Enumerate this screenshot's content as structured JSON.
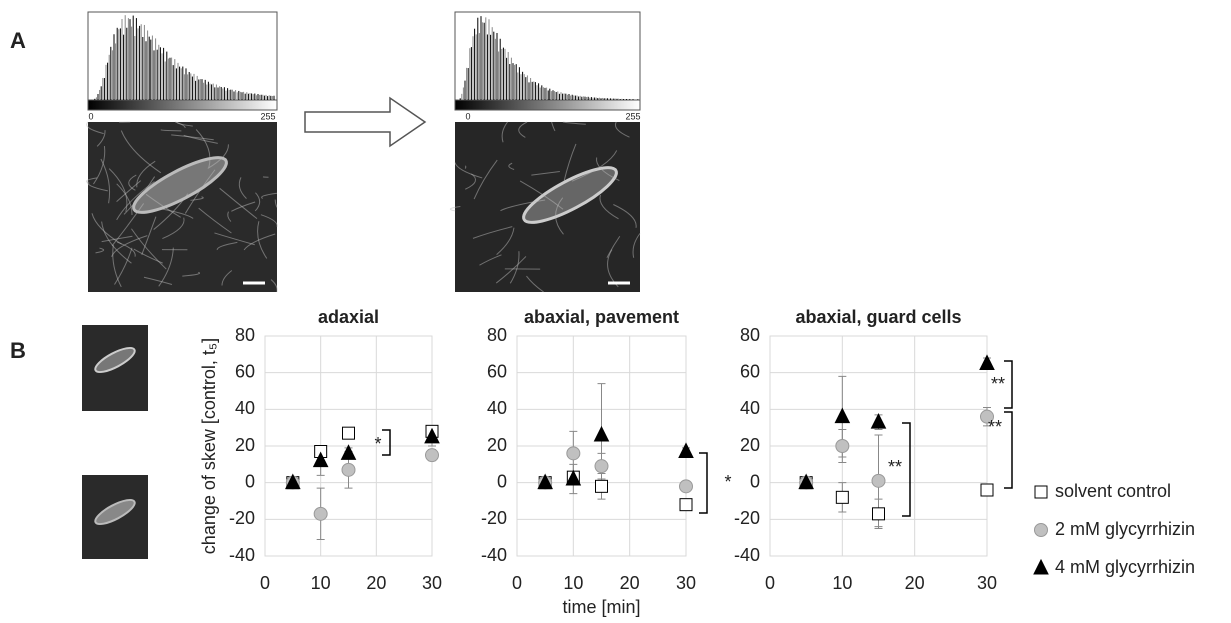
{
  "panel_a": {
    "label": "A",
    "histograms": [
      {
        "min_label": 0,
        "max_label": 255
      },
      {
        "min_label": 0,
        "max_label": 255
      }
    ]
  },
  "panel_b": {
    "label": "B"
  },
  "chart_data": [
    {
      "type": "scatter",
      "title": "adaxial",
      "y_label": "change of skew [control, t₅]",
      "xlim": [
        0,
        30
      ],
      "xticks": [
        0,
        10,
        20,
        30
      ],
      "ylim": [
        -40,
        80
      ],
      "yticks": [
        -40,
        -20,
        0,
        20,
        40,
        60,
        80
      ],
      "grid": true,
      "x": [
        5,
        10,
        15,
        30
      ],
      "series": [
        {
          "name": "solvent control",
          "marker": "square",
          "color": "#ffffff",
          "values": [
            0,
            17,
            27,
            28
          ],
          "errors": [
            1,
            3,
            2,
            3
          ]
        },
        {
          "name": "2 mM glycyrrhizin",
          "marker": "circle",
          "color": "#c0c0c0",
          "values": [
            0,
            -17,
            7,
            15
          ],
          "errors": [
            1,
            14,
            10,
            3
          ]
        },
        {
          "name": "4 mM glycyrrhizin",
          "marker": "triangle",
          "color": "#000000",
          "values": [
            0,
            12,
            16,
            25
          ],
          "errors": [
            1,
            8,
            3,
            5
          ]
        }
      ],
      "annotations": [
        "*"
      ]
    },
    {
      "type": "scatter",
      "title": "abaxial, pavement",
      "x_label": "time [min]",
      "xlim": [
        0,
        30
      ],
      "xticks": [
        0,
        10,
        20,
        30
      ],
      "ylim": [
        -40,
        80
      ],
      "yticks": [
        -40,
        -20,
        0,
        20,
        40,
        60,
        80
      ],
      "grid": true,
      "x": [
        5,
        10,
        15,
        30
      ],
      "series": [
        {
          "marker": "square",
          "color": "#ffffff",
          "values": [
            0,
            3,
            -2,
            -12
          ],
          "errors": [
            1,
            3,
            7,
            3
          ]
        },
        {
          "marker": "circle",
          "color": "#c0c0c0",
          "values": [
            0,
            16,
            9,
            -2
          ],
          "errors": [
            1,
            12,
            7,
            2
          ]
        },
        {
          "marker": "triangle",
          "color": "#000000",
          "values": [
            0,
            2,
            26,
            17
          ],
          "errors": [
            1,
            8,
            28,
            2
          ]
        }
      ],
      "annotations": [
        "*"
      ]
    },
    {
      "type": "scatter",
      "title": "abaxial, guard cells",
      "xlim": [
        0,
        30
      ],
      "xticks": [
        0,
        10,
        20,
        30
      ],
      "ylim": [
        -40,
        80
      ],
      "yticks": [
        -40,
        -20,
        0,
        20,
        40,
        60,
        80
      ],
      "grid": true,
      "x": [
        5,
        10,
        15,
        30
      ],
      "series": [
        {
          "marker": "square",
          "color": "#ffffff",
          "values": [
            0,
            -8,
            -17,
            -4
          ],
          "errors": [
            1,
            8,
            8,
            2
          ]
        },
        {
          "marker": "circle",
          "color": "#c0c0c0",
          "values": [
            0,
            20,
            1,
            36
          ],
          "errors": [
            1,
            9,
            25,
            5
          ]
        },
        {
          "marker": "triangle",
          "color": "#000000",
          "values": [
            0,
            36,
            33,
            65
          ],
          "errors": [
            1,
            22,
            4,
            3
          ]
        }
      ],
      "annotations": [
        "**",
        "**",
        "**"
      ]
    }
  ]
}
